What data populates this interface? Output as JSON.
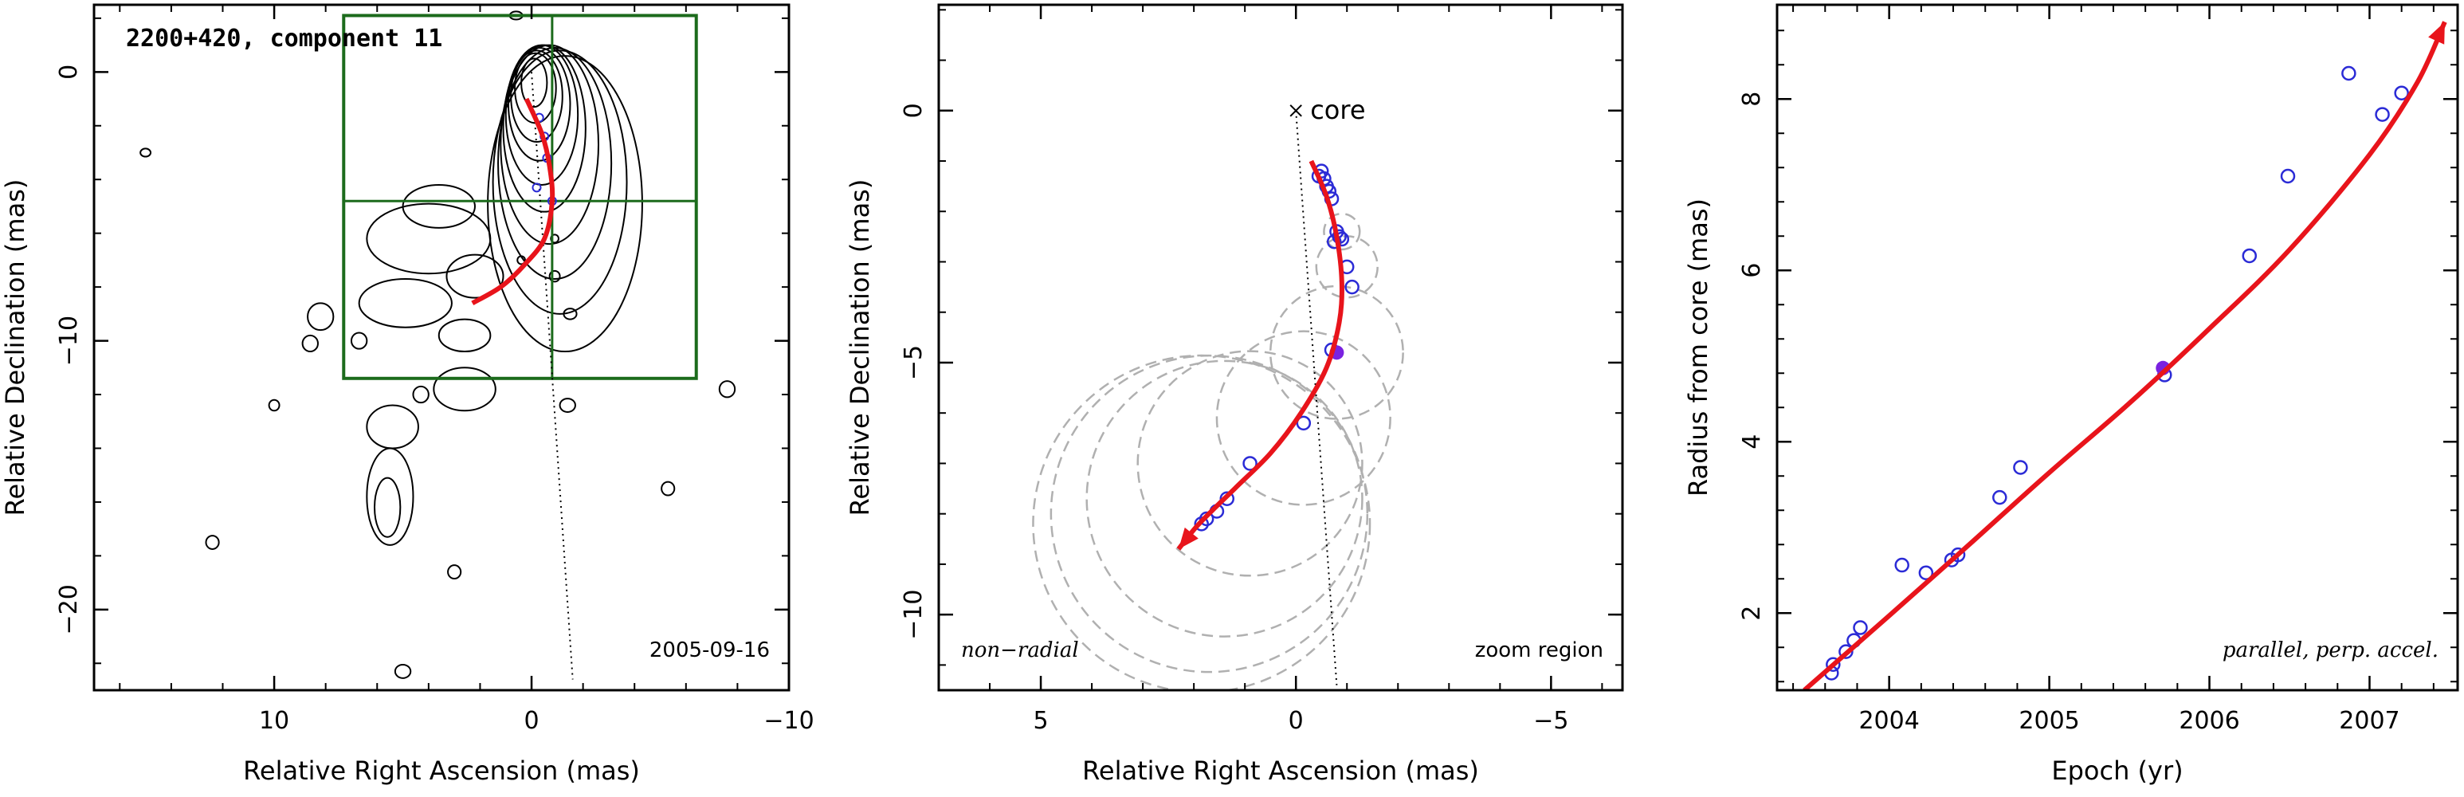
{
  "colors": {
    "fit": "#e8141b",
    "points": "#2b2bd6",
    "filled_point": "#7a22e0",
    "box": "#1c6b1c",
    "dashed": "#b0b0b0",
    "contour": "#000000"
  },
  "chart_data": [
    {
      "type": "contour",
      "title": "2200+420, component 11",
      "date_label": "2005-09-16",
      "xlabel": "Relative Right Ascension (mas)",
      "ylabel": "Relative Declination (mas)",
      "xlim": [
        17,
        -10
      ],
      "ylim": [
        -23,
        2.5
      ],
      "xticks": [
        10,
        0,
        -10
      ],
      "xtick_labels": [
        "10",
        "0",
        "−10"
      ],
      "yticks": [
        0,
        -10,
        -20
      ],
      "ytick_labels": [
        "0",
        "−10",
        "−20"
      ],
      "zoom_box": {
        "x": [
          7.3,
          -6.4
        ],
        "y": [
          2.1,
          -11.4
        ],
        "cross_x": -0.8,
        "cross_y": -4.8
      },
      "fit_track": [
        [
          0.2,
          -1
        ],
        [
          -0.4,
          -2.3
        ],
        [
          -0.7,
          -3.5
        ],
        [
          -0.8,
          -4.8
        ],
        [
          -0.5,
          -6.2
        ],
        [
          0.3,
          -7.2
        ],
        [
          1.2,
          -8.0
        ],
        [
          2.3,
          -8.6
        ]
      ],
      "reference_line": [
        [
          0,
          0
        ],
        [
          -1.6,
          -22.6
        ]
      ],
      "jet_contours": [
        {
          "cx": -0.1,
          "cy": -0.4,
          "rx": 0.5,
          "ry": 0.9
        },
        {
          "cx": -0.15,
          "cy": -0.6,
          "rx": 0.8,
          "ry": 1.3
        },
        {
          "cx": -0.2,
          "cy": -0.9,
          "rx": 1.0,
          "ry": 1.7
        },
        {
          "cx": -0.3,
          "cy": -1.2,
          "rx": 1.2,
          "ry": 2.1
        },
        {
          "cx": -0.4,
          "cy": -1.6,
          "rx": 1.4,
          "ry": 2.6
        },
        {
          "cx": -0.5,
          "cy": -2.1,
          "rx": 1.6,
          "ry": 3.1
        },
        {
          "cx": -0.7,
          "cy": -2.7,
          "rx": 1.9,
          "ry": 3.7
        },
        {
          "cx": -0.9,
          "cy": -3.4,
          "rx": 2.2,
          "ry": 4.3
        },
        {
          "cx": -1.1,
          "cy": -4.1,
          "rx": 2.6,
          "ry": 4.9
        },
        {
          "cx": -1.3,
          "cy": -4.9,
          "rx": 3.0,
          "ry": 5.5
        }
      ],
      "blob_contours": [
        {
          "cx": 4.0,
          "cy": -6.2,
          "rx": 2.4,
          "ry": 1.3
        },
        {
          "cx": 3.6,
          "cy": -5.0,
          "rx": 1.4,
          "ry": 0.8
        },
        {
          "cx": 2.2,
          "cy": -7.6,
          "rx": 1.1,
          "ry": 0.8
        },
        {
          "cx": 4.9,
          "cy": -8.6,
          "rx": 1.8,
          "ry": 0.9
        },
        {
          "cx": 2.6,
          "cy": -9.8,
          "rx": 1.0,
          "ry": 0.6
        },
        {
          "cx": 2.6,
          "cy": -11.8,
          "rx": 1.2,
          "ry": 0.8
        },
        {
          "cx": 5.4,
          "cy": -13.2,
          "rx": 1.0,
          "ry": 0.8
        },
        {
          "cx": 5.5,
          "cy": -15.8,
          "rx": 0.9,
          "ry": 1.8
        },
        {
          "cx": 5.6,
          "cy": -16.2,
          "rx": 0.5,
          "ry": 1.1
        },
        {
          "cx": 8.2,
          "cy": -9.1,
          "rx": 0.5,
          "ry": 0.5
        },
        {
          "cx": 8.6,
          "cy": -10.1,
          "rx": 0.3,
          "ry": 0.3
        },
        {
          "cx": 4.3,
          "cy": -12.0,
          "rx": 0.3,
          "ry": 0.3
        },
        {
          "cx": 6.7,
          "cy": -10.0,
          "rx": 0.3,
          "ry": 0.3
        },
        {
          "cx": 12.4,
          "cy": -17.5,
          "rx": 0.25,
          "ry": 0.25
        },
        {
          "cx": 15.0,
          "cy": -3.0,
          "rx": 0.2,
          "ry": 0.15
        },
        {
          "cx": 10.0,
          "cy": -12.4,
          "rx": 0.2,
          "ry": 0.2
        },
        {
          "cx": -1.4,
          "cy": -12.4,
          "rx": 0.3,
          "ry": 0.25
        },
        {
          "cx": 3.0,
          "cy": -18.6,
          "rx": 0.25,
          "ry": 0.25
        },
        {
          "cx": 5.0,
          "cy": -22.3,
          "rx": 0.3,
          "ry": 0.25
        },
        {
          "cx": -5.3,
          "cy": -15.5,
          "rx": 0.25,
          "ry": 0.25
        },
        {
          "cx": -7.6,
          "cy": -11.8,
          "rx": 0.3,
          "ry": 0.3
        },
        {
          "cx": -0.9,
          "cy": -6.2,
          "rx": 0.15,
          "ry": 0.15
        },
        {
          "cx": -1.5,
          "cy": -9.0,
          "rx": 0.25,
          "ry": 0.2
        },
        {
          "cx": 0.4,
          "cy": -7.0,
          "rx": 0.15,
          "ry": 0.15
        },
        {
          "cx": -0.9,
          "cy": -7.6,
          "rx": 0.2,
          "ry": 0.2
        },
        {
          "cx": 0.6,
          "cy": 2.1,
          "rx": 0.25,
          "ry": 0.15
        }
      ],
      "points": [
        [
          -0.3,
          -1.7
        ],
        [
          -0.5,
          -2.4
        ],
        [
          -0.6,
          -3.2
        ],
        [
          -0.8,
          -4.8
        ],
        [
          -0.2,
          -4.3
        ]
      ]
    },
    {
      "type": "scatter",
      "xlabel": "Relative Right Ascension (mas)",
      "ylabel": "Relative Declination (mas)",
      "xlim": [
        7.0,
        -6.4
      ],
      "ylim": [
        -11.5,
        2.1
      ],
      "xticks": [
        5,
        0,
        -5
      ],
      "xtick_labels": [
        "5",
        "0",
        "−5"
      ],
      "yticks": [
        0,
        -5,
        -10
      ],
      "ytick_labels": [
        "0",
        "−5",
        "−10"
      ],
      "core_label": "core",
      "core": [
        0,
        0
      ],
      "label_left": "non−radial",
      "label_right": "zoom region",
      "fit_track": [
        [
          -0.3,
          -1.0
        ],
        [
          -0.6,
          -1.7
        ],
        [
          -0.8,
          -2.5
        ],
        [
          -0.9,
          -3.4
        ],
        [
          -0.85,
          -4.2
        ],
        [
          -0.6,
          -5.1
        ],
        [
          -0.1,
          -6.0
        ],
        [
          0.5,
          -6.8
        ],
        [
          1.2,
          -7.5
        ],
        [
          1.9,
          -8.2
        ],
        [
          2.3,
          -8.7
        ]
      ],
      "reference_line": [
        [
          0,
          0
        ],
        [
          -0.8,
          -11.4
        ]
      ],
      "points": [
        [
          -0.5,
          -1.2
        ],
        [
          -0.45,
          -1.3
        ],
        [
          -0.55,
          -1.35
        ],
        [
          -0.6,
          -1.5
        ],
        [
          -0.65,
          -1.6
        ],
        [
          -0.7,
          -1.75
        ],
        [
          -0.8,
          -2.4
        ],
        [
          -0.85,
          -2.5
        ],
        [
          -0.9,
          -2.55
        ],
        [
          -0.75,
          -2.6
        ],
        [
          -1.0,
          -3.1
        ],
        [
          -1.1,
          -3.5
        ],
        [
          -0.7,
          -4.75
        ],
        [
          -0.15,
          -6.2
        ],
        [
          0.9,
          -7.0
        ],
        [
          1.35,
          -7.7
        ],
        [
          1.55,
          -7.95
        ],
        [
          1.75,
          -8.1
        ],
        [
          1.85,
          -8.2
        ]
      ],
      "filled_point": [
        -0.8,
        -4.8
      ],
      "dashed_circles": [
        {
          "x": -0.9,
          "y": -2.4,
          "r": 0.35
        },
        {
          "x": -1.0,
          "y": -3.1,
          "r": 0.6
        },
        {
          "x": -0.8,
          "y": -4.8,
          "r": 1.3
        },
        {
          "x": -0.15,
          "y": -6.1,
          "r": 1.7
        },
        {
          "x": 0.9,
          "y": -7.0,
          "r": 2.2
        },
        {
          "x": 1.4,
          "y": -7.7,
          "r": 2.7
        },
        {
          "x": 1.7,
          "y": -8.0,
          "r": 3.1
        },
        {
          "x": 1.85,
          "y": -8.2,
          "r": 3.3
        }
      ]
    },
    {
      "type": "scatter",
      "xlabel": "Epoch (yr)",
      "ylabel": "Radius from core (mas)",
      "xlim": [
        2003.3,
        2007.55
      ],
      "ylim": [
        1.1,
        9.1
      ],
      "xticks": [
        2004,
        2005,
        2006,
        2007
      ],
      "xtick_labels": [
        "2004",
        "2005",
        "2006",
        "2007"
      ],
      "yticks": [
        2,
        4,
        6,
        8
      ],
      "ytick_labels": [
        "2",
        "4",
        "6",
        "8"
      ],
      "label": "parallel, perp. accel.",
      "fit_curve": [
        [
          2003.47,
          1.1
        ],
        [
          2004.0,
          1.97
        ],
        [
          2004.5,
          2.8
        ],
        [
          2005.0,
          3.64
        ],
        [
          2005.5,
          4.45
        ],
        [
          2006.0,
          5.32
        ],
        [
          2006.5,
          6.24
        ],
        [
          2007.0,
          7.35
        ],
        [
          2007.3,
          8.2
        ],
        [
          2007.47,
          8.9
        ]
      ],
      "points": [
        [
          2003.64,
          1.3
        ],
        [
          2003.65,
          1.4
        ],
        [
          2003.73,
          1.55
        ],
        [
          2003.78,
          1.68
        ],
        [
          2003.82,
          1.83
        ],
        [
          2004.08,
          2.56
        ],
        [
          2004.23,
          2.47
        ],
        [
          2004.39,
          2.62
        ],
        [
          2004.43,
          2.68
        ],
        [
          2004.69,
          3.35
        ],
        [
          2004.82,
          3.7
        ],
        [
          2005.72,
          4.78
        ],
        [
          2006.25,
          6.17
        ],
        [
          2006.49,
          7.1
        ],
        [
          2006.87,
          8.3
        ],
        [
          2007.08,
          7.82
        ],
        [
          2007.2,
          8.07
        ]
      ],
      "filled_point": [
        2005.71,
        4.86
      ]
    }
  ]
}
